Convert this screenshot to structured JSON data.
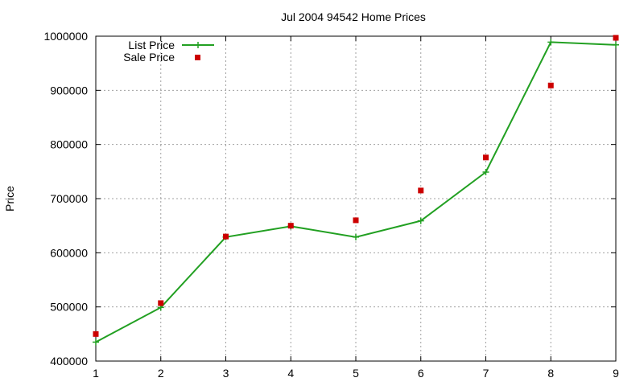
{
  "chart_data": {
    "type": "line",
    "title": "Jul 2004 94542 Home Prices",
    "xlabel": "",
    "ylabel": "Price",
    "x": [
      1,
      2,
      3,
      4,
      5,
      6,
      7,
      8,
      9
    ],
    "xlim": [
      1,
      9
    ],
    "ylim": [
      400000,
      1000000
    ],
    "xticks": [
      "1",
      "2",
      "3",
      "4",
      "5",
      "6",
      "7",
      "8",
      "9"
    ],
    "yticks": [
      "400000",
      "500000",
      "600000",
      "700000",
      "800000",
      "900000",
      "1000000"
    ],
    "grid": true,
    "legend_position": "top-left",
    "series": [
      {
        "name": "List Price",
        "style": "line-with-plus-markers",
        "color": "#22a022",
        "values": [
          435000,
          499000,
          629000,
          649000,
          629000,
          659000,
          749000,
          989000,
          984000
        ]
      },
      {
        "name": "Sale Price",
        "style": "square-markers",
        "color": "#cc0000",
        "values": [
          450000,
          507000,
          630000,
          650000,
          660000,
          715000,
          776000,
          909000,
          997000
        ]
      }
    ]
  }
}
